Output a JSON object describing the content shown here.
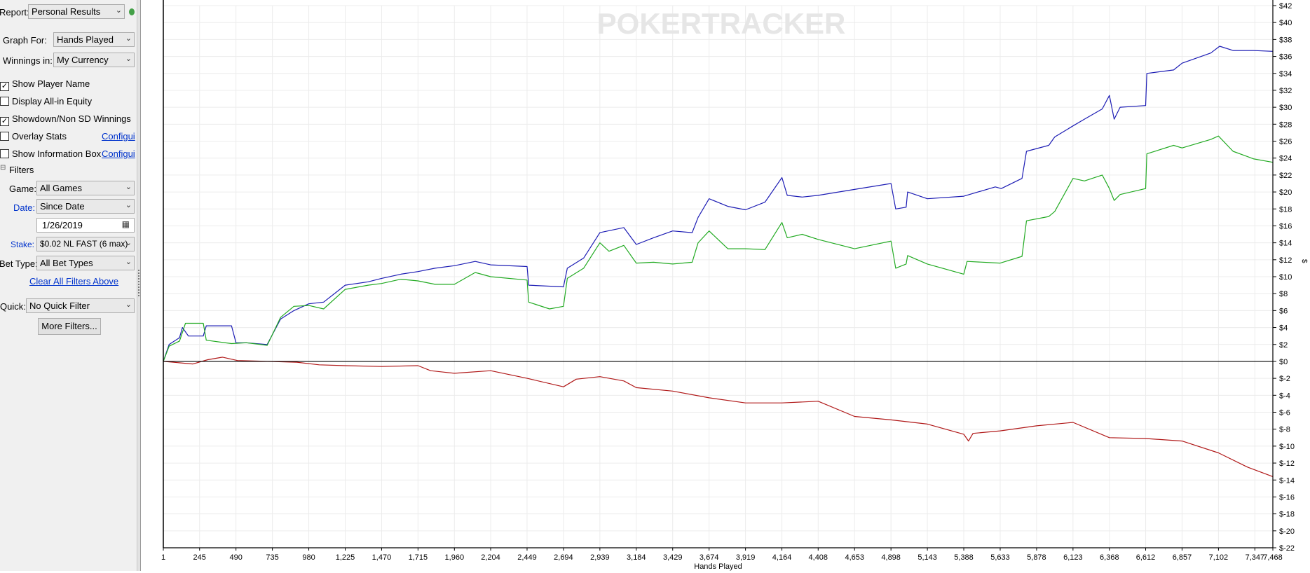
{
  "panel": {
    "report_label": "Report:",
    "report_value": "Personal Results",
    "graph_for_label": "Graph For:",
    "graph_for_value": "Hands Played",
    "winnings_label": "Winnings in:",
    "winnings_value": "My Currency",
    "checks": [
      {
        "label": "Show Player Name",
        "checked": true
      },
      {
        "label": "Display All-in Equity",
        "checked": false
      },
      {
        "label": "Showdown/Non SD Winnings",
        "checked": true
      },
      {
        "label": "Overlay Stats",
        "checked": false,
        "link": "Configui"
      },
      {
        "label": "Show Information Box",
        "checked": false,
        "link": "Configui"
      }
    ],
    "filters_title": "Filters",
    "game_label": "Game:",
    "game_value": "All Games",
    "date_label": "Date:",
    "date_value": "Since Date",
    "date_input": "1/26/2019",
    "stake_label": "Stake:",
    "stake_value": "$0.02 NL FAST (6 max)",
    "bet_type_label": "Bet Type:",
    "bet_type_value": "All Bet Types",
    "clear_filters": "Clear All Filters Above",
    "quick_label": "Quick:",
    "quick_value": "No Quick Filter",
    "more_filters": "More Filters..."
  },
  "chart_data": {
    "type": "line",
    "watermark": "POKERTRACKER",
    "xlabel": "Hands Played",
    "ylabel": "$",
    "xlim": [
      1,
      7468
    ],
    "ylim": [
      -22,
      42
    ],
    "x_ticks": [
      "1",
      "245",
      "490",
      "735",
      "980",
      "1,225",
      "1,470",
      "1,715",
      "1,960",
      "2,204",
      "2,449",
      "2,694",
      "2,939",
      "3,184",
      "3,429",
      "3,674",
      "3,919",
      "4,164",
      "4,408",
      "4,653",
      "4,898",
      "5,143",
      "5,388",
      "5,633",
      "5,878",
      "6,123",
      "6,368",
      "6,612",
      "6,857",
      "7,102",
      "7,347",
      "7,468"
    ],
    "y_ticks": [
      "$42",
      "$40",
      "$38",
      "$36",
      "$34",
      "$32",
      "$30",
      "$28",
      "$26",
      "$24",
      "$22",
      "$20",
      "$18",
      "$16",
      "$14",
      "$12",
      "$10",
      "$8",
      "$6",
      "$4",
      "$2",
      "$0",
      "$-2",
      "$-4",
      "$-6",
      "$-8",
      "$-10",
      "$-12",
      "$-14",
      "$-16",
      "$-18",
      "$-20",
      "$-22"
    ],
    "grid": true,
    "series": [
      {
        "color": "#1c1cb4",
        "points": [
          [
            1,
            0
          ],
          [
            40,
            2
          ],
          [
            110,
            2.8
          ],
          [
            130,
            4
          ],
          [
            170,
            3
          ],
          [
            270,
            3
          ],
          [
            290,
            4.2
          ],
          [
            460,
            4.2
          ],
          [
            490,
            2.2
          ],
          [
            560,
            2.2
          ],
          [
            700,
            2
          ],
          [
            790,
            5
          ],
          [
            880,
            6
          ],
          [
            980,
            6.8
          ],
          [
            1080,
            7
          ],
          [
            1225,
            9
          ],
          [
            1380,
            9.4
          ],
          [
            1470,
            9.8
          ],
          [
            1600,
            10.3
          ],
          [
            1715,
            10.6
          ],
          [
            1830,
            11
          ],
          [
            1960,
            11.3
          ],
          [
            2100,
            11.8
          ],
          [
            2204,
            11.4
          ],
          [
            2449,
            11.2
          ],
          [
            2460,
            9
          ],
          [
            2694,
            8.8
          ],
          [
            2720,
            11
          ],
          [
            2830,
            12.2
          ],
          [
            2939,
            15.2
          ],
          [
            3100,
            15.8
          ],
          [
            3184,
            13.8
          ],
          [
            3300,
            14.6
          ],
          [
            3429,
            15.4
          ],
          [
            3560,
            15.2
          ],
          [
            3600,
            17
          ],
          [
            3674,
            19.2
          ],
          [
            3800,
            18.3
          ],
          [
            3919,
            17.9
          ],
          [
            4050,
            18.8
          ],
          [
            4164,
            21.7
          ],
          [
            4200,
            19.6
          ],
          [
            4300,
            19.4
          ],
          [
            4408,
            19.6
          ],
          [
            4653,
            20.3
          ],
          [
            4898,
            21
          ],
          [
            4930,
            18
          ],
          [
            5000,
            18.2
          ],
          [
            5010,
            20
          ],
          [
            5143,
            19.2
          ],
          [
            5388,
            19.5
          ],
          [
            5600,
            20.6
          ],
          [
            5640,
            20.4
          ],
          [
            5780,
            21.6
          ],
          [
            5810,
            24.8
          ],
          [
            5960,
            25.5
          ],
          [
            6000,
            26.5
          ],
          [
            6123,
            27.8
          ],
          [
            6200,
            28.6
          ],
          [
            6320,
            29.8
          ],
          [
            6368,
            31.4
          ],
          [
            6400,
            28.6
          ],
          [
            6440,
            30
          ],
          [
            6612,
            30.2
          ],
          [
            6620,
            34
          ],
          [
            6800,
            34.4
          ],
          [
            6857,
            35.2
          ],
          [
            7050,
            36.4
          ],
          [
            7110,
            37.2
          ],
          [
            7200,
            36.7
          ],
          [
            7340,
            36.7
          ],
          [
            7468,
            36.6
          ]
        ]
      },
      {
        "color": "#22aa22",
        "points": [
          [
            1,
            0
          ],
          [
            40,
            1.8
          ],
          [
            110,
            2.4
          ],
          [
            150,
            4.5
          ],
          [
            270,
            4.5
          ],
          [
            290,
            2.5
          ],
          [
            460,
            2.1
          ],
          [
            560,
            2.2
          ],
          [
            700,
            1.9
          ],
          [
            790,
            5.2
          ],
          [
            880,
            6.5
          ],
          [
            980,
            6.6
          ],
          [
            1080,
            6.2
          ],
          [
            1225,
            8.5
          ],
          [
            1380,
            9
          ],
          [
            1470,
            9.2
          ],
          [
            1600,
            9.7
          ],
          [
            1715,
            9.5
          ],
          [
            1830,
            9.1
          ],
          [
            1960,
            9.1
          ],
          [
            2100,
            10.5
          ],
          [
            2204,
            10
          ],
          [
            2449,
            9.6
          ],
          [
            2460,
            7
          ],
          [
            2600,
            6.2
          ],
          [
            2694,
            6.5
          ],
          [
            2720,
            9.8
          ],
          [
            2830,
            11
          ],
          [
            2939,
            14
          ],
          [
            3000,
            13
          ],
          [
            3100,
            13.7
          ],
          [
            3184,
            11.6
          ],
          [
            3300,
            11.7
          ],
          [
            3429,
            11.5
          ],
          [
            3560,
            11.7
          ],
          [
            3600,
            14
          ],
          [
            3674,
            15.4
          ],
          [
            3800,
            13.3
          ],
          [
            3919,
            13.3
          ],
          [
            4050,
            13.2
          ],
          [
            4164,
            16.4
          ],
          [
            4200,
            14.6
          ],
          [
            4300,
            15
          ],
          [
            4408,
            14.4
          ],
          [
            4653,
            13.3
          ],
          [
            4898,
            14.2
          ],
          [
            4930,
            11
          ],
          [
            5000,
            11.5
          ],
          [
            5010,
            12.5
          ],
          [
            5143,
            11.5
          ],
          [
            5388,
            10.3
          ],
          [
            5410,
            11.8
          ],
          [
            5633,
            11.6
          ],
          [
            5780,
            12.4
          ],
          [
            5810,
            16.6
          ],
          [
            5960,
            17.1
          ],
          [
            6000,
            17.7
          ],
          [
            6123,
            21.6
          ],
          [
            6200,
            21.3
          ],
          [
            6320,
            22
          ],
          [
            6368,
            20.4
          ],
          [
            6400,
            19
          ],
          [
            6440,
            19.7
          ],
          [
            6612,
            20.4
          ],
          [
            6620,
            24.5
          ],
          [
            6800,
            25.5
          ],
          [
            6857,
            25.2
          ],
          [
            7050,
            26.2
          ],
          [
            7102,
            26.6
          ],
          [
            7200,
            24.8
          ],
          [
            7340,
            23.9
          ],
          [
            7468,
            23.5
          ]
        ]
      },
      {
        "color": "#b01818",
        "points": [
          [
            1,
            0
          ],
          [
            200,
            -0.3
          ],
          [
            300,
            0.2
          ],
          [
            400,
            0.5
          ],
          [
            500,
            0.1
          ],
          [
            700,
            0
          ],
          [
            900,
            -0.1
          ],
          [
            1050,
            -0.4
          ],
          [
            1225,
            -0.5
          ],
          [
            1470,
            -0.6
          ],
          [
            1715,
            -0.5
          ],
          [
            1800,
            -1.1
          ],
          [
            1960,
            -1.4
          ],
          [
            2204,
            -1.1
          ],
          [
            2449,
            -2
          ],
          [
            2694,
            -3
          ],
          [
            2780,
            -2.1
          ],
          [
            2939,
            -1.8
          ],
          [
            3100,
            -2.3
          ],
          [
            3184,
            -3.1
          ],
          [
            3429,
            -3.5
          ],
          [
            3674,
            -4.3
          ],
          [
            3919,
            -4.9
          ],
          [
            4164,
            -4.9
          ],
          [
            4408,
            -4.7
          ],
          [
            4653,
            -6.5
          ],
          [
            4898,
            -6.9
          ],
          [
            5143,
            -7.4
          ],
          [
            5388,
            -8.6
          ],
          [
            5420,
            -9.4
          ],
          [
            5450,
            -8.5
          ],
          [
            5633,
            -8.2
          ],
          [
            5878,
            -7.6
          ],
          [
            6123,
            -7.2
          ],
          [
            6368,
            -9
          ],
          [
            6612,
            -9.1
          ],
          [
            6857,
            -9.4
          ],
          [
            7102,
            -10.8
          ],
          [
            7300,
            -12.5
          ],
          [
            7468,
            -13.6
          ]
        ]
      }
    ]
  }
}
